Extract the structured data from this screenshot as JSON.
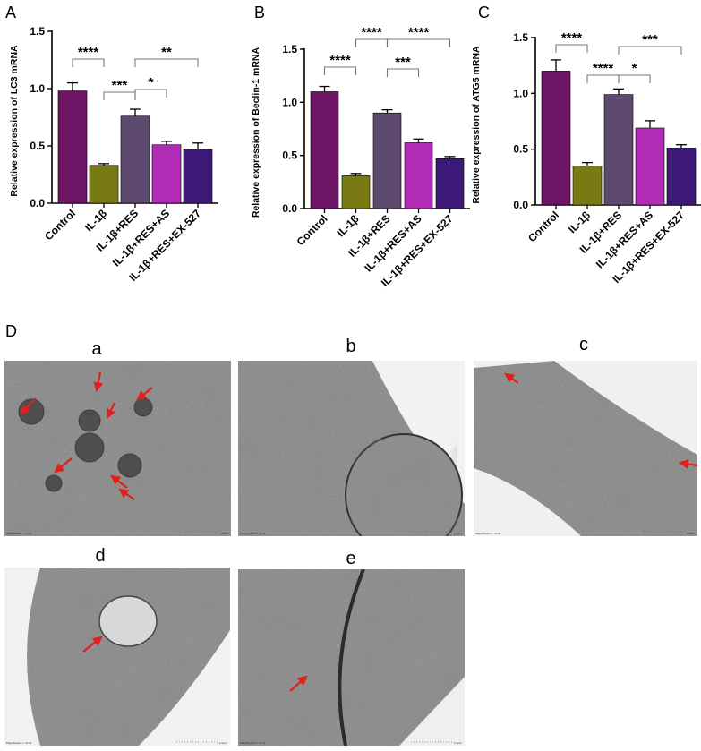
{
  "figure": {
    "panel_letters": [
      "A",
      "B",
      "C"
    ],
    "micrograph_panel_letter": "D",
    "micrographs": [
      {
        "label": "a",
        "arrows": 7,
        "magnification_text": "Magnification = 12.0k",
        "scale_text": "1.0µm"
      },
      {
        "label": "b",
        "arrows": 0,
        "magnification_text": "Magnification = 12.0k",
        "scale_text": "1.0µm"
      },
      {
        "label": "c",
        "arrows": 2,
        "magnification_text": "Magnification = 12.0k",
        "scale_text": "1.0µm"
      },
      {
        "label": "d",
        "arrows": 1,
        "magnification_text": "Magnification = 12.0k",
        "scale_text": "1.0µm"
      },
      {
        "label": "e",
        "arrows": 1,
        "magnification_text": "Magnification = 12.0k",
        "scale_text": "1.0µm"
      }
    ]
  },
  "colors": {
    "bars": [
      "#6e1566",
      "#7a7a14",
      "#5e4a6e",
      "#b02cb4",
      "#3e1a78"
    ],
    "arrow": "#e0201c",
    "axis": "#000000"
  },
  "chart_data": [
    {
      "type": "bar",
      "panel": "A",
      "categories": [
        "Control",
        "IL-1β",
        "IL-1β+RES",
        "IL-1β+RES+AS",
        "IL-1β+RES+EX-527"
      ],
      "values": [
        0.98,
        0.33,
        0.76,
        0.51,
        0.47
      ],
      "errors": [
        0.07,
        0.015,
        0.06,
        0.03,
        0.055
      ],
      "ylabel": "Relative expression of LC3 mRNA",
      "ylim": [
        0,
        1.5
      ],
      "yticks": [
        0.0,
        0.5,
        1.0,
        1.5
      ],
      "ytick_labels": [
        "0.0",
        "0.5",
        "1.0",
        "1.5"
      ],
      "grid": false,
      "significance": [
        {
          "from": 0,
          "to": 1,
          "label": "****"
        },
        {
          "from": 1,
          "to": 2,
          "label": "***"
        },
        {
          "from": 2,
          "to": 3,
          "label": "*"
        },
        {
          "from": 2,
          "to": 4,
          "label": "**"
        }
      ]
    },
    {
      "type": "bar",
      "panel": "B",
      "categories": [
        "Control",
        "IL-1β",
        "IL-1β+RES",
        "IL-1β+RES+AS",
        "IL-1β+RES+EX-527"
      ],
      "values": [
        1.1,
        0.31,
        0.9,
        0.62,
        0.47
      ],
      "errors": [
        0.05,
        0.02,
        0.03,
        0.035,
        0.02
      ],
      "ylabel": "Relative expression of Beclin-1 mRNA",
      "ylim": [
        0,
        1.5
      ],
      "yticks": [
        0.0,
        0.5,
        1.0,
        1.5
      ],
      "ytick_labels": [
        "0.0",
        "0.5",
        "1.0",
        "1.5"
      ],
      "grid": false,
      "significance": [
        {
          "from": 0,
          "to": 1,
          "label": "****"
        },
        {
          "from": 1,
          "to": 2,
          "label": "****"
        },
        {
          "from": 2,
          "to": 3,
          "label": "***"
        },
        {
          "from": 2,
          "to": 4,
          "label": "****"
        }
      ]
    },
    {
      "type": "bar",
      "panel": "C",
      "categories": [
        "Control",
        "IL-1β",
        "IL-1β+RES",
        "IL-1β+RES+AS",
        "IL-1β+RES+EX-527"
      ],
      "values": [
        1.2,
        0.35,
        0.99,
        0.69,
        0.51
      ],
      "errors": [
        0.1,
        0.03,
        0.05,
        0.065,
        0.03
      ],
      "ylabel": "Relative expression of ATG5 mRNA",
      "ylim": [
        0,
        1.5
      ],
      "yticks": [
        0.0,
        0.5,
        1.0,
        1.5
      ],
      "ytick_labels": [
        "0.0",
        "0.5",
        "1.0",
        "1.5"
      ],
      "grid": false,
      "significance": [
        {
          "from": 0,
          "to": 1,
          "label": "****"
        },
        {
          "from": 1,
          "to": 2,
          "label": "****"
        },
        {
          "from": 2,
          "to": 3,
          "label": "*"
        },
        {
          "from": 2,
          "to": 4,
          "label": "***"
        }
      ]
    }
  ]
}
